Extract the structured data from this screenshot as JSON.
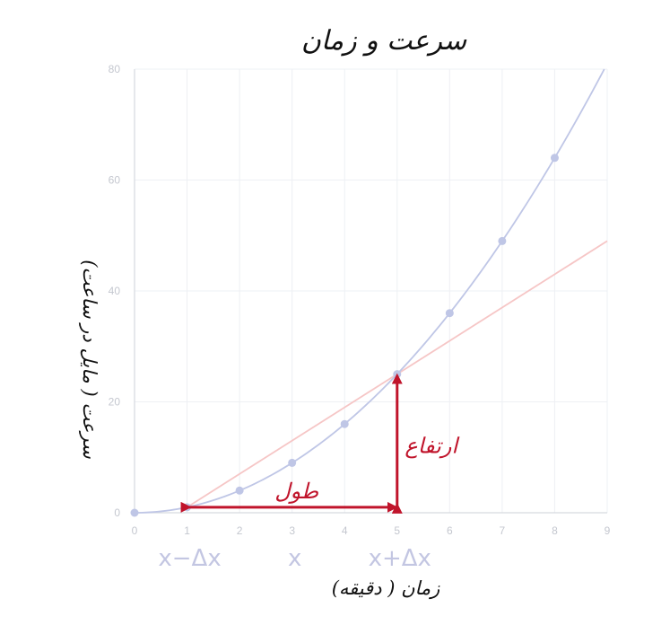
{
  "chart_data": {
    "type": "line",
    "title": "سرعت و زمان",
    "xlabel": "زمان ( دقیقه)",
    "ylabel": "سرعت ( مایل در ساعت)",
    "xlim": [
      0,
      9
    ],
    "ylim": [
      0,
      80
    ],
    "x_ticks": [
      "0",
      "1",
      "2",
      "3",
      "4",
      "5",
      "6",
      "7",
      "8",
      "9"
    ],
    "y_ticks": [
      "0",
      "20",
      "40",
      "60",
      "80"
    ],
    "grid": true,
    "series": [
      {
        "type": "line-with-markers",
        "x": [
          0,
          1,
          2,
          3,
          4,
          5,
          6,
          7,
          8
        ],
        "y": [
          0,
          1,
          4,
          9,
          16,
          25,
          36,
          49,
          64
        ],
        "curve": "y = x^2",
        "color": "#bfc6e6"
      },
      {
        "type": "secant-line",
        "x": [
          1,
          9
        ],
        "y": [
          1,
          49
        ],
        "color": "#f6c6c6"
      }
    ],
    "x_symbol_labels": [
      {
        "x": 1,
        "text": "x−Δx"
      },
      {
        "x": 3,
        "text": "x"
      },
      {
        "x": 5,
        "text": "x+Δx"
      }
    ],
    "annotations": [
      {
        "text": "طول",
        "kind": "horizontal-arrow",
        "from": [
          1,
          1
        ],
        "to": [
          5,
          1
        ]
      },
      {
        "text": "ارتفاع",
        "kind": "vertical-arrow",
        "from": [
          5,
          1
        ],
        "to": [
          5,
          25
        ]
      }
    ],
    "colors": {
      "grid": "#eef0f4",
      "axis": "#d6d9df",
      "tick_text": "#c4c7cf",
      "curve": "#bfc6e6",
      "marker": "#bfc6e6",
      "secant": "#f6c6c6",
      "annotation": "#c0142b",
      "symbol_label": "#c3c6e2"
    }
  }
}
